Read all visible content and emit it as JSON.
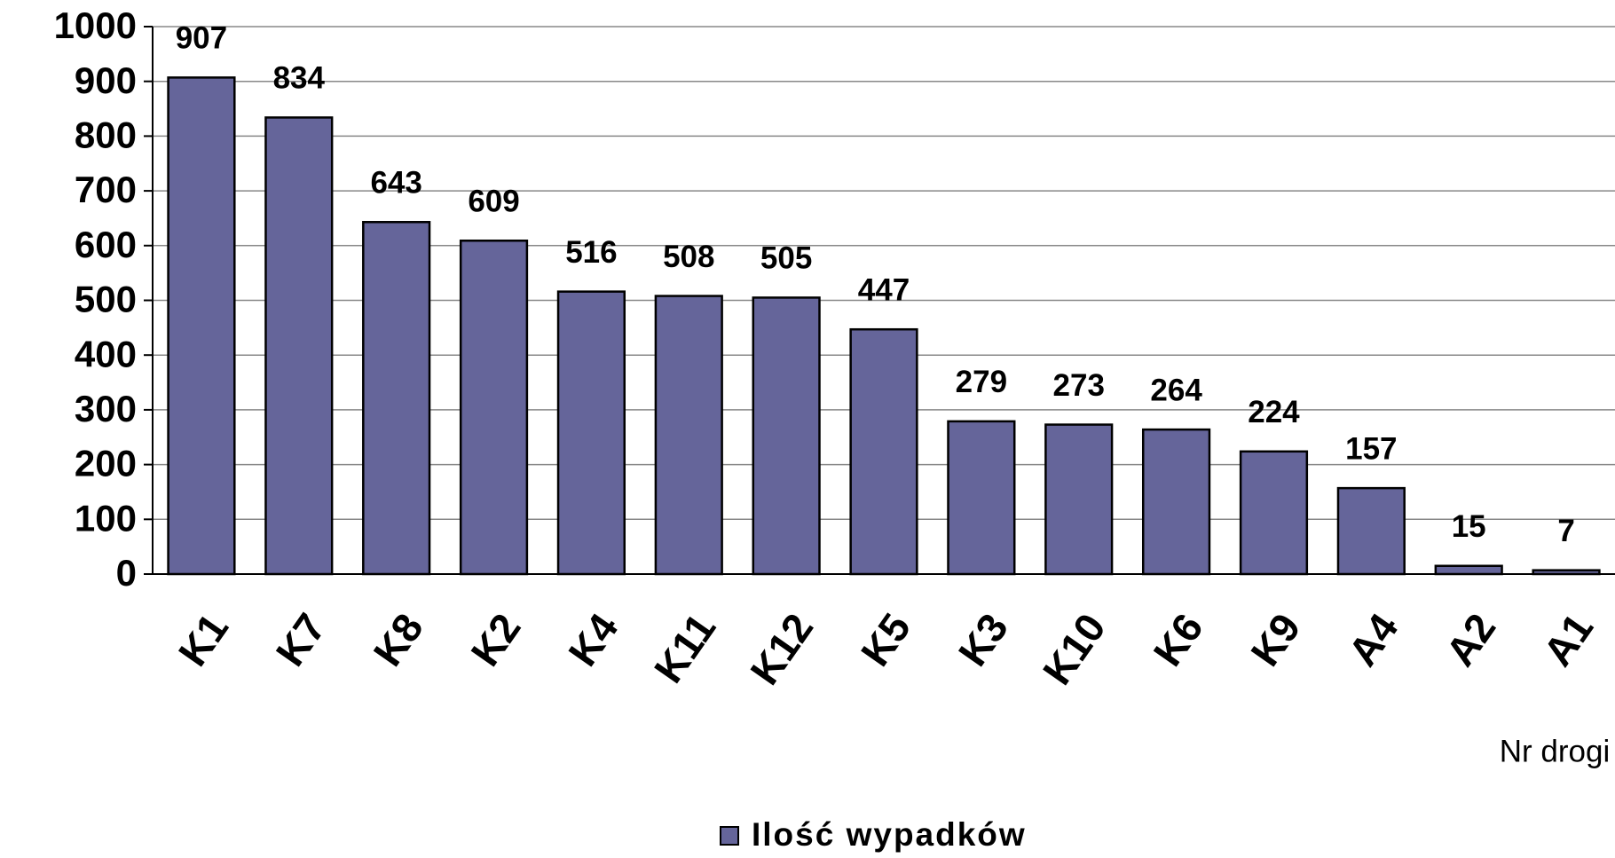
{
  "chart_data": {
    "type": "bar",
    "x_label": "Nr drogi",
    "categories": [
      "K1",
      "K7",
      "K8",
      "K2",
      "K4",
      "K11",
      "K12",
      "K5",
      "K3",
      "K10",
      "K6",
      "K9",
      "A4",
      "A2",
      "A1"
    ],
    "series": [
      {
        "name": "Ilość wypadków",
        "color": "#65659a",
        "values": [
          907,
          834,
          643,
          609,
          516,
          508,
          505,
          447,
          279,
          273,
          264,
          224,
          157,
          15,
          7
        ]
      }
    ],
    "ylim": [
      0,
      1000
    ],
    "yticks": [
      0,
      100,
      200,
      300,
      400,
      500,
      600,
      700,
      800,
      900,
      1000
    ],
    "grid": true,
    "legend": "bottom"
  }
}
